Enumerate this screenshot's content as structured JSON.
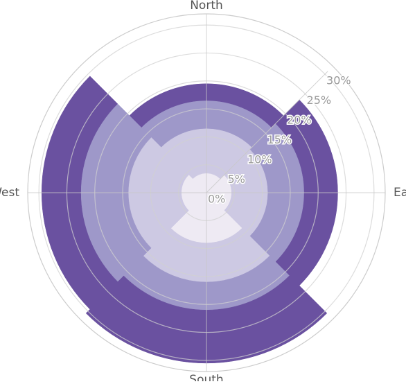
{
  "chart_data": {
    "type": "polar-bar",
    "categories": [
      "North",
      "East",
      "South",
      "West"
    ],
    "series": [
      {
        "color": "#eeeaf3",
        "values": [
          3.5,
          4.5,
          9,
          4.5
        ]
      },
      {
        "color": "#cdc9e3",
        "values": [
          8,
          6.5,
          7,
          9.5
        ]
      },
      {
        "color": "#9e98c9",
        "values": [
          5,
          6.5,
          5,
          8.5
        ]
      },
      {
        "color": "#6a51a0",
        "values": [
          3,
          6,
          9.5,
          7
        ]
      }
    ],
    "rlim": [
      0,
      32
    ],
    "rticks": [
      {
        "value": 0,
        "label": "0%"
      },
      {
        "value": 5,
        "label": "5%"
      },
      {
        "value": 10,
        "label": "10%"
      },
      {
        "value": 15,
        "label": "15%"
      },
      {
        "value": 20,
        "label": "20%"
      },
      {
        "value": 25,
        "label": "25%"
      },
      {
        "value": 30,
        "label": "30%"
      }
    ],
    "grid": true
  }
}
